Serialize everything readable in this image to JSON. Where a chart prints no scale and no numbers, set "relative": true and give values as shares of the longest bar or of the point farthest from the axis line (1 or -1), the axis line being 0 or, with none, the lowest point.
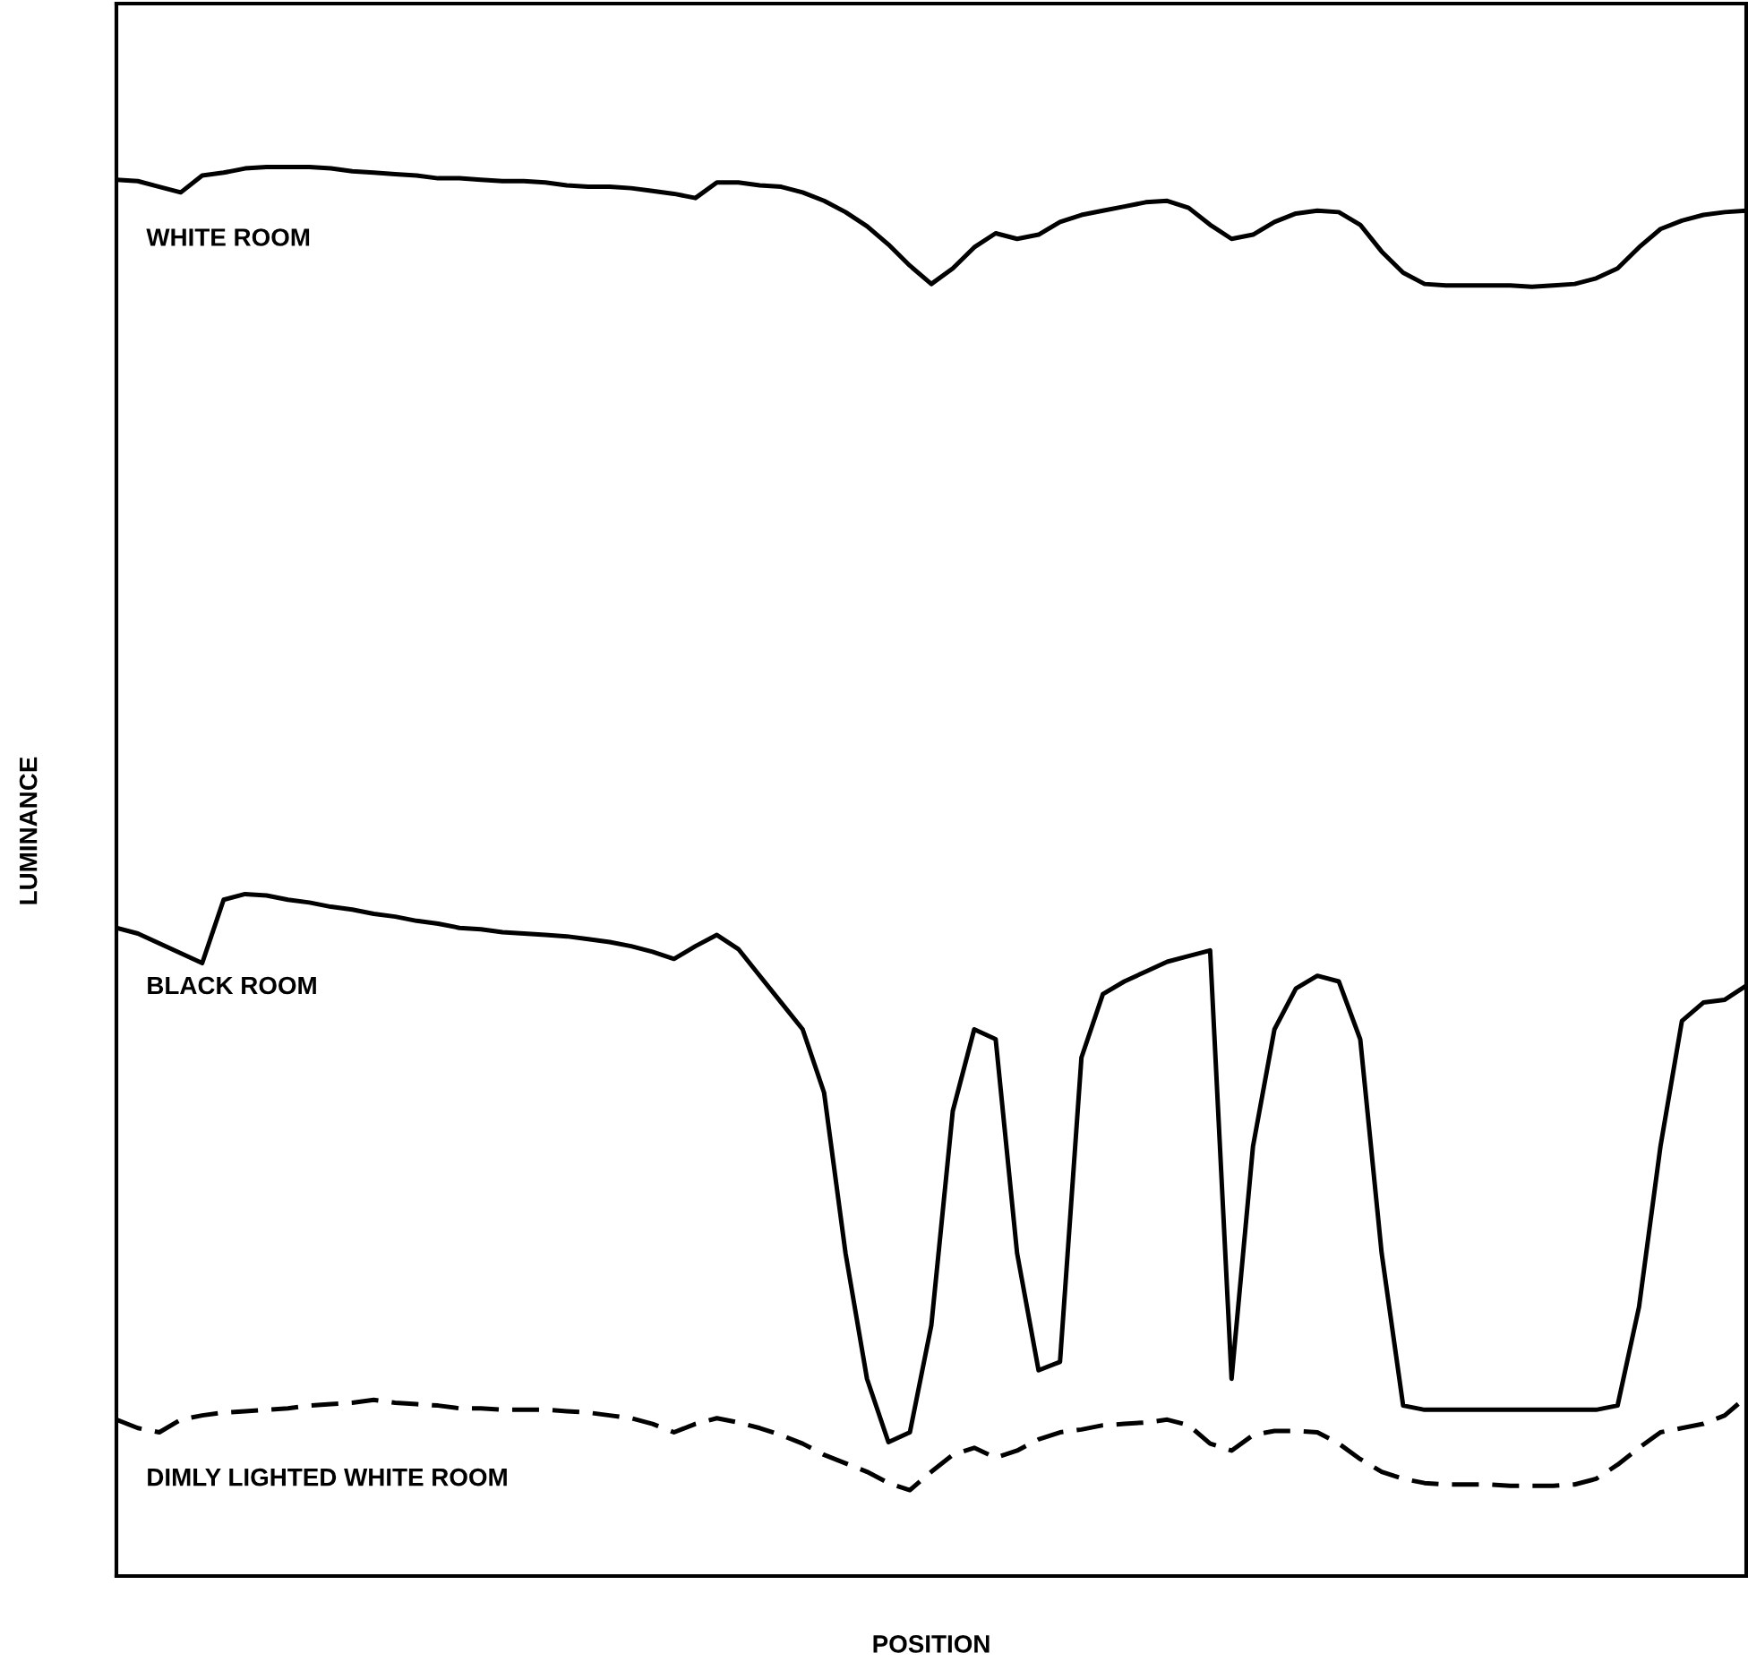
{
  "chart_data": {
    "type": "line",
    "relative": true,
    "xlabel": "POSITION",
    "ylabel": "LUMINANCE",
    "legend": false,
    "grid": false,
    "marker": "none",
    "categories": [
      null,
      null,
      null,
      null,
      null,
      null,
      null,
      null,
      null,
      null,
      null,
      null,
      null,
      null,
      null,
      null,
      null,
      null,
      null,
      null,
      null,
      null,
      null,
      null,
      null,
      null,
      null,
      null,
      null,
      null,
      null,
      null,
      null,
      null,
      null,
      null,
      null,
      null,
      null,
      null,
      null,
      null,
      null,
      null,
      null,
      null,
      null,
      null,
      null,
      null,
      null,
      null,
      null,
      null,
      null,
      null,
      null,
      null,
      null,
      null,
      null,
      null,
      null,
      null,
      null,
      null,
      null,
      null,
      null,
      null,
      null,
      null,
      null,
      null,
      null,
      null,
      null
    ],
    "series": [
      {
        "name": "WHITE ROOM",
        "color": "#000000",
        "line_style": "solid",
        "values": [
          0.991,
          0.99,
          0.986,
          0.982,
          0.994,
          0.996,
          0.999,
          1.0,
          1.0,
          1.0,
          0.999,
          0.997,
          0.996,
          0.995,
          0.994,
          0.992,
          0.992,
          0.991,
          0.99,
          0.99,
          0.989,
          0.987,
          0.986,
          0.986,
          0.985,
          0.983,
          0.981,
          0.978,
          0.989,
          0.989,
          0.987,
          0.986,
          0.982,
          0.976,
          0.968,
          0.958,
          0.945,
          0.93,
          0.917,
          0.928,
          0.943,
          0.953,
          0.949,
          0.952,
          0.961,
          0.966,
          0.969,
          0.972,
          0.975,
          0.976,
          0.971,
          0.959,
          0.949,
          0.952,
          0.961,
          0.967,
          0.969,
          0.968,
          0.959,
          0.94,
          0.925,
          0.917,
          0.916,
          0.916,
          0.916,
          0.916,
          0.915,
          0.916,
          0.917,
          0.921,
          0.928,
          0.943,
          0.956,
          0.962,
          0.966,
          0.968,
          0.969
        ]
      },
      {
        "name": "BLACK ROOM",
        "color": "#000000",
        "line_style": "solid",
        "values": [
          0.46,
          0.456,
          0.449,
          0.442,
          0.435,
          0.48,
          0.484,
          0.483,
          0.48,
          0.478,
          0.475,
          0.473,
          0.47,
          0.468,
          0.465,
          0.463,
          0.46,
          0.459,
          0.457,
          0.456,
          0.455,
          0.454,
          0.452,
          0.45,
          0.447,
          0.443,
          0.438,
          0.447,
          0.455,
          0.445,
          0.426,
          0.407,
          0.388,
          0.343,
          0.229,
          0.14,
          0.095,
          0.102,
          0.178,
          0.33,
          0.388,
          0.381,
          0.229,
          0.146,
          0.152,
          0.368,
          0.413,
          0.422,
          0.429,
          0.436,
          0.44,
          0.444,
          0.14,
          0.305,
          0.388,
          0.417,
          0.426,
          0.422,
          0.381,
          0.229,
          0.121,
          0.118,
          0.118,
          0.118,
          0.118,
          0.118,
          0.118,
          0.118,
          0.118,
          0.118,
          0.121,
          0.191,
          0.305,
          0.394,
          0.407,
          0.409,
          0.419
        ]
      },
      {
        "name": "DIMLY LIGHTED WHITE ROOM",
        "color": "#000000",
        "line_style": "dashed",
        "values": [
          0.111,
          0.105,
          0.102,
          0.111,
          0.114,
          0.116,
          0.117,
          0.118,
          0.119,
          0.121,
          0.122,
          0.123,
          0.125,
          0.123,
          0.122,
          0.121,
          0.119,
          0.119,
          0.118,
          0.118,
          0.118,
          0.117,
          0.116,
          0.114,
          0.112,
          0.108,
          0.102,
          0.108,
          0.112,
          0.109,
          0.105,
          0.1,
          0.094,
          0.086,
          0.08,
          0.074,
          0.066,
          0.061,
          0.074,
          0.086,
          0.091,
          0.084,
          0.089,
          0.097,
          0.102,
          0.104,
          0.107,
          0.108,
          0.109,
          0.111,
          0.107,
          0.094,
          0.089,
          0.1,
          0.103,
          0.103,
          0.102,
          0.094,
          0.083,
          0.074,
          0.069,
          0.066,
          0.065,
          0.065,
          0.065,
          0.064,
          0.064,
          0.064,
          0.065,
          0.069,
          0.079,
          0.091,
          0.102,
          0.105,
          0.108,
          0.114,
          0.127
        ]
      }
    ]
  }
}
